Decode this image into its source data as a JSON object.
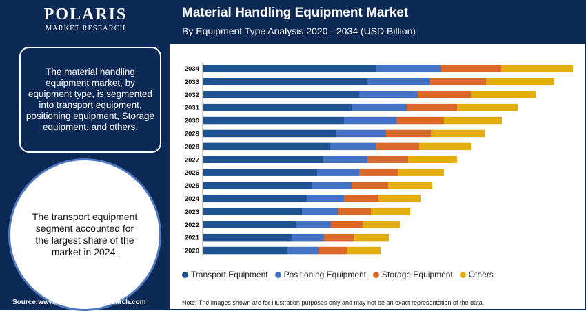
{
  "brand": {
    "name": "POLARIS",
    "tagline": "MARKET RESEARCH"
  },
  "info_box": "The material handling equipment market, by equipment type, is segmented into transport equipment, positioning equipment, Storage equipment, and others.",
  "highlight": "The transport equipment segment accounted for the largest share of the market in 2024.",
  "source": "Source:www.polarismarketresearch.com",
  "note": "Note: The images shown are for illustration purposes only and may not be an exact representation of the data.",
  "chart_data": {
    "type": "bar",
    "orientation": "horizontal",
    "stacked": true,
    "title": "Material Handling Equipment Market",
    "subtitle": "By Equipment Type Analysis 2020 - 2034 (USD Billion)",
    "categories": [
      "2034",
      "2033",
      "2032",
      "2031",
      "2030",
      "2029",
      "2028",
      "2027",
      "2026",
      "2025",
      "2024",
      "2023",
      "2022",
      "2021",
      "2020"
    ],
    "series": [
      {
        "name": "Transport Equipment",
        "color": "#1f5291",
        "values": [
          250,
          238,
          226,
          215,
          204,
          193,
          183,
          174,
          165,
          157,
          150,
          143,
          135,
          128,
          122
        ]
      },
      {
        "name": "Positioning Equipment",
        "color": "#4472c4",
        "values": [
          95,
          90,
          85,
          80,
          76,
          72,
          68,
          64,
          61,
          58,
          54,
          52,
          50,
          47,
          45
        ]
      },
      {
        "name": "Storage Equipment",
        "color": "#d9692b",
        "values": [
          87,
          82,
          77,
          73,
          69,
          65,
          62,
          59,
          56,
          53,
          50,
          48,
          46,
          43,
          41
        ]
      },
      {
        "name": "Others",
        "color": "#e4ad0f",
        "values": [
          104,
          99,
          94,
          88,
          84,
          79,
          75,
          71,
          67,
          64,
          61,
          57,
          54,
          51,
          49
        ]
      }
    ],
    "grid": false,
    "legend_position": "bottom"
  }
}
